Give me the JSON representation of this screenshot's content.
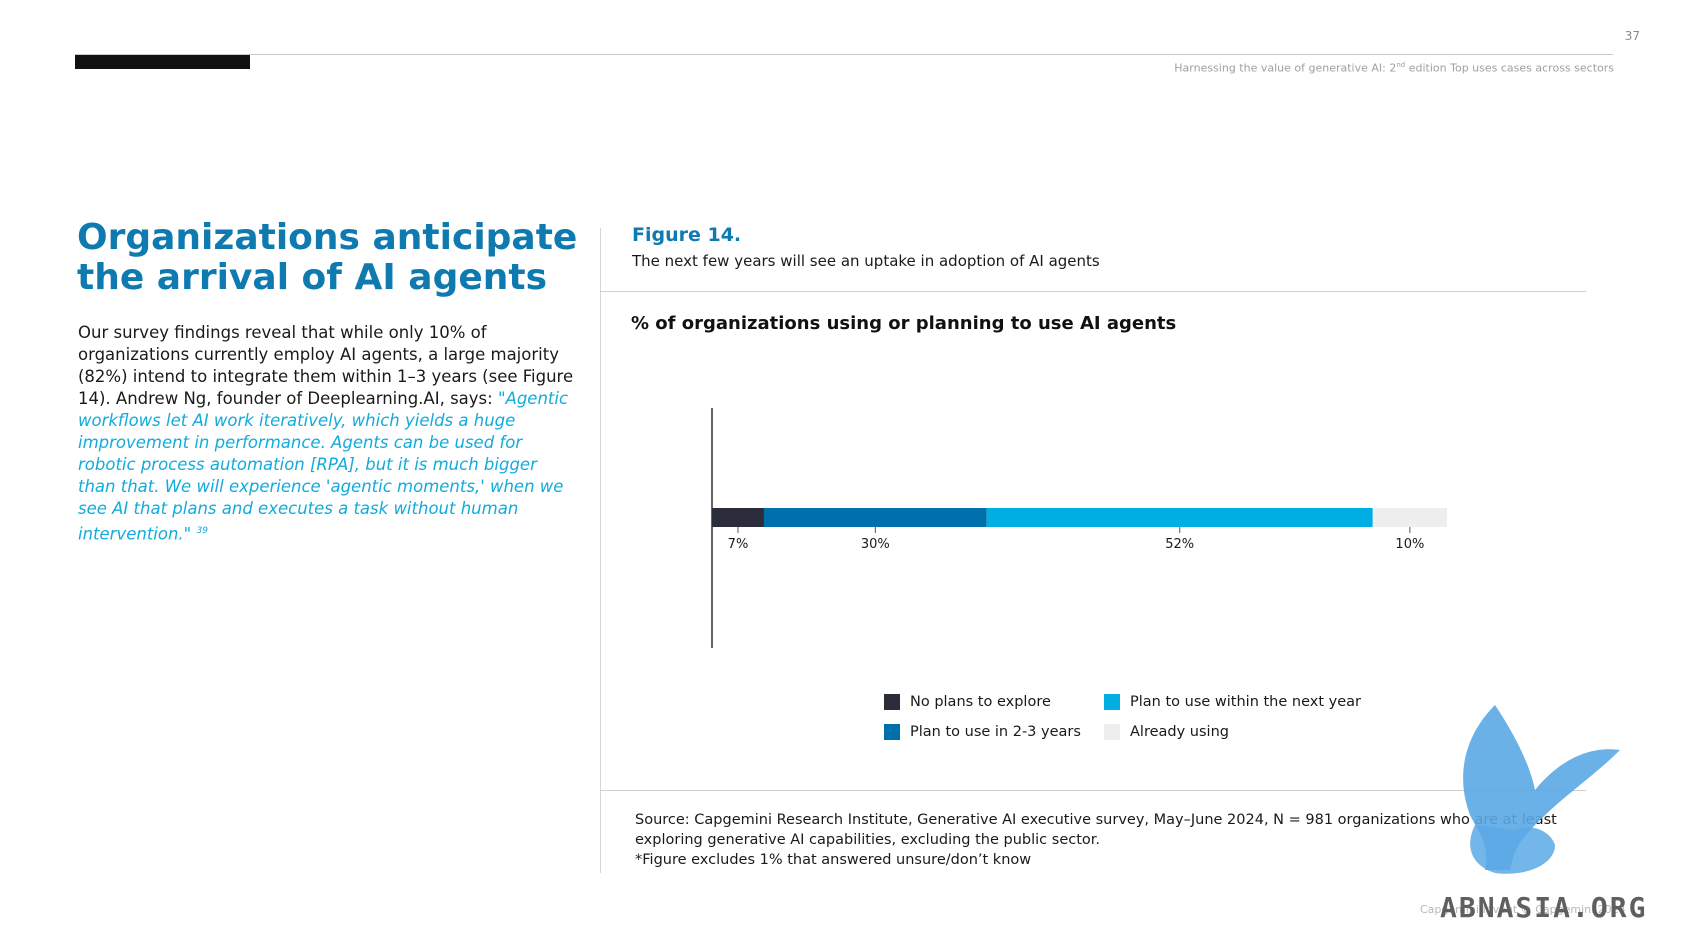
{
  "header": {
    "page_number": "37",
    "running_head_pre": "Harnessing the value of generative AI: 2",
    "running_head_sup": "nd",
    "running_head_post": " edition Top uses cases across sectors"
  },
  "left": {
    "title": "Organizations anticipate the arrival of AI agents",
    "body": "Our survey findings reveal that while only 10% of organizations currently employ AI agents, a large majority (82%) intend to integrate them within 1–3 years (see Figure 14). Andrew Ng, founder of Deeplearning.AI, says: ",
    "quote": "\"Agentic workflows let AI work iteratively, which yields a huge improvement in performance. Agents can be used for robotic process automation [RPA], but it is much bigger than that. We will experience 'agentic moments,' when we see AI that plans and executes a task without human intervention.\"",
    "footnote": "39"
  },
  "figure": {
    "label": "Figure 14.",
    "caption": "The next few years will see an uptake in adoption of AI agents"
  },
  "chart_data": {
    "type": "bar",
    "orientation": "horizontal",
    "stacked": true,
    "title": "% of organizations using or planning to use AI agents",
    "categories": [
      ""
    ],
    "xlim": [
      0,
      100
    ],
    "grid": false,
    "legend_position": "bottom",
    "series": [
      {
        "name": "No plans to explore",
        "values": [
          7
        ],
        "label": "7%",
        "color": "#2b2d3a"
      },
      {
        "name": "Plan to use in 2-3 years",
        "values": [
          30
        ],
        "label": "30%",
        "color": "#0070ad"
      },
      {
        "name": "Plan to use within the next year",
        "values": [
          52
        ],
        "label": "52%",
        "color": "#00aee3"
      },
      {
        "name": "Already using",
        "values": [
          10
        ],
        "label": "10%",
        "color": "#eeeeee"
      }
    ]
  },
  "source": {
    "line1": "Source: Capgemini Research Institute, Generative AI executive survey, May–June 2024, N = 981 organizations who are at least exploring generative AI capabilities, excluding the public sector.",
    "line2": "*Figure excludes 1% that answered unsure/don’t know"
  },
  "watermark": {
    "text": "ABNASIA.ORG"
  },
  "footer": {
    "copyright": "Capgemini Invent © Capgemini 2024"
  }
}
